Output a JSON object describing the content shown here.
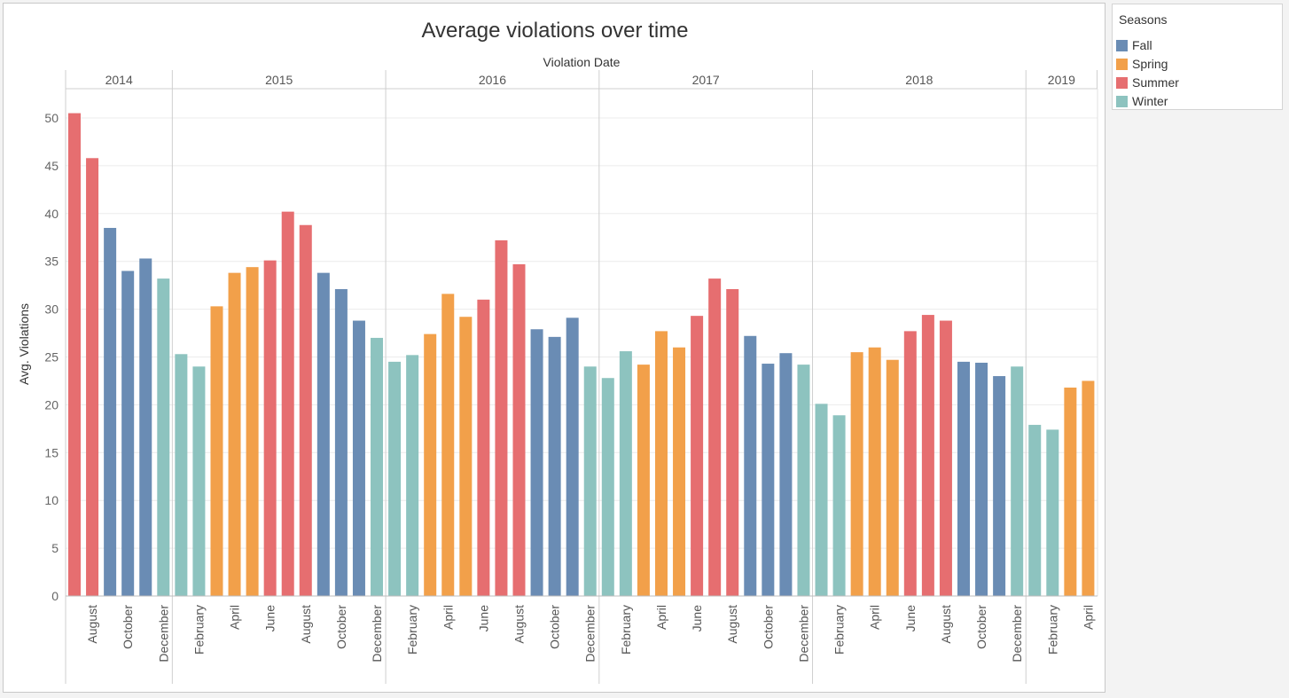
{
  "chart_data": {
    "type": "bar",
    "title": "Average violations over time",
    "xlabel": "Violation Date",
    "ylabel": "Avg. Violations",
    "ylim": [
      0,
      53
    ],
    "yticks": [
      0,
      5,
      10,
      15,
      20,
      25,
      30,
      35,
      40,
      45,
      50
    ],
    "grid": true,
    "legend_position": "top-right",
    "years": [
      {
        "label": "2014",
        "months": [
          {
            "month": "July",
            "label": "",
            "season": "Summer",
            "value": 50.5
          },
          {
            "month": "August",
            "label": "August",
            "season": "Summer",
            "value": 45.8
          },
          {
            "month": "September",
            "label": "",
            "season": "Fall",
            "value": 38.5
          },
          {
            "month": "October",
            "label": "October",
            "season": "Fall",
            "value": 34.0
          },
          {
            "month": "November",
            "label": "",
            "season": "Fall",
            "value": 35.3
          },
          {
            "month": "December",
            "label": "December",
            "season": "Winter",
            "value": 33.2
          }
        ]
      },
      {
        "label": "2015",
        "months": [
          {
            "month": "January",
            "label": "",
            "season": "Winter",
            "value": 25.3
          },
          {
            "month": "February",
            "label": "February",
            "season": "Winter",
            "value": 24.0
          },
          {
            "month": "March",
            "label": "",
            "season": "Spring",
            "value": 30.3
          },
          {
            "month": "April",
            "label": "April",
            "season": "Spring",
            "value": 33.8
          },
          {
            "month": "May",
            "label": "",
            "season": "Spring",
            "value": 34.4
          },
          {
            "month": "June",
            "label": "June",
            "season": "Summer",
            "value": 35.1
          },
          {
            "month": "July",
            "label": "",
            "season": "Summer",
            "value": 40.2
          },
          {
            "month": "August",
            "label": "August",
            "season": "Summer",
            "value": 38.8
          },
          {
            "month": "September",
            "label": "",
            "season": "Fall",
            "value": 33.8
          },
          {
            "month": "October",
            "label": "October",
            "season": "Fall",
            "value": 32.1
          },
          {
            "month": "November",
            "label": "",
            "season": "Fall",
            "value": 28.8
          },
          {
            "month": "December",
            "label": "December",
            "season": "Winter",
            "value": 27.0
          }
        ]
      },
      {
        "label": "2016",
        "months": [
          {
            "month": "January",
            "label": "",
            "season": "Winter",
            "value": 24.5
          },
          {
            "month": "February",
            "label": "February",
            "season": "Winter",
            "value": 25.2
          },
          {
            "month": "March",
            "label": "",
            "season": "Spring",
            "value": 27.4
          },
          {
            "month": "April",
            "label": "April",
            "season": "Spring",
            "value": 31.6
          },
          {
            "month": "May",
            "label": "",
            "season": "Spring",
            "value": 29.2
          },
          {
            "month": "June",
            "label": "June",
            "season": "Summer",
            "value": 31.0
          },
          {
            "month": "July",
            "label": "",
            "season": "Summer",
            "value": 37.2
          },
          {
            "month": "August",
            "label": "August",
            "season": "Summer",
            "value": 34.7
          },
          {
            "month": "September",
            "label": "",
            "season": "Fall",
            "value": 27.9
          },
          {
            "month": "October",
            "label": "October",
            "season": "Fall",
            "value": 27.1
          },
          {
            "month": "November",
            "label": "",
            "season": "Fall",
            "value": 29.1
          },
          {
            "month": "December",
            "label": "December",
            "season": "Winter",
            "value": 24.0
          }
        ]
      },
      {
        "label": "2017",
        "months": [
          {
            "month": "January",
            "label": "",
            "season": "Winter",
            "value": 22.8
          },
          {
            "month": "February",
            "label": "February",
            "season": "Winter",
            "value": 25.6
          },
          {
            "month": "March",
            "label": "",
            "season": "Spring",
            "value": 24.2
          },
          {
            "month": "April",
            "label": "April",
            "season": "Spring",
            "value": 27.7
          },
          {
            "month": "May",
            "label": "",
            "season": "Spring",
            "value": 26.0
          },
          {
            "month": "June",
            "label": "June",
            "season": "Summer",
            "value": 29.3
          },
          {
            "month": "July",
            "label": "",
            "season": "Summer",
            "value": 33.2
          },
          {
            "month": "August",
            "label": "August",
            "season": "Summer",
            "value": 32.1
          },
          {
            "month": "September",
            "label": "",
            "season": "Fall",
            "value": 27.2
          },
          {
            "month": "October",
            "label": "October",
            "season": "Fall",
            "value": 24.3
          },
          {
            "month": "November",
            "label": "",
            "season": "Fall",
            "value": 25.4
          },
          {
            "month": "December",
            "label": "December",
            "season": "Winter",
            "value": 24.2
          }
        ]
      },
      {
        "label": "2018",
        "months": [
          {
            "month": "January",
            "label": "",
            "season": "Winter",
            "value": 20.1
          },
          {
            "month": "February",
            "label": "February",
            "season": "Winter",
            "value": 18.9
          },
          {
            "month": "March",
            "label": "",
            "season": "Spring",
            "value": 25.5
          },
          {
            "month": "April",
            "label": "April",
            "season": "Spring",
            "value": 26.0
          },
          {
            "month": "May",
            "label": "",
            "season": "Spring",
            "value": 24.7
          },
          {
            "month": "June",
            "label": "June",
            "season": "Summer",
            "value": 27.7
          },
          {
            "month": "July",
            "label": "",
            "season": "Summer",
            "value": 29.4
          },
          {
            "month": "August",
            "label": "August",
            "season": "Summer",
            "value": 28.8
          },
          {
            "month": "September",
            "label": "",
            "season": "Fall",
            "value": 24.5
          },
          {
            "month": "October",
            "label": "October",
            "season": "Fall",
            "value": 24.4
          },
          {
            "month": "November",
            "label": "",
            "season": "Fall",
            "value": 23.0
          },
          {
            "month": "December",
            "label": "December",
            "season": "Winter",
            "value": 24.0
          }
        ]
      },
      {
        "label": "2019",
        "months": [
          {
            "month": "January",
            "label": "",
            "season": "Winter",
            "value": 17.9
          },
          {
            "month": "February",
            "label": "February",
            "season": "Winter",
            "value": 17.4
          },
          {
            "month": "March",
            "label": "",
            "season": "Spring",
            "value": 21.8
          },
          {
            "month": "April",
            "label": "April",
            "season": "Spring",
            "value": 22.5
          }
        ]
      }
    ]
  },
  "legend": {
    "title": "Seasons",
    "items": [
      {
        "name": "Fall",
        "color": "#6a8cb4"
      },
      {
        "name": "Spring",
        "color": "#f2a04a"
      },
      {
        "name": "Summer",
        "color": "#e66e70"
      },
      {
        "name": "Winter",
        "color": "#8dc3bf"
      }
    ]
  }
}
